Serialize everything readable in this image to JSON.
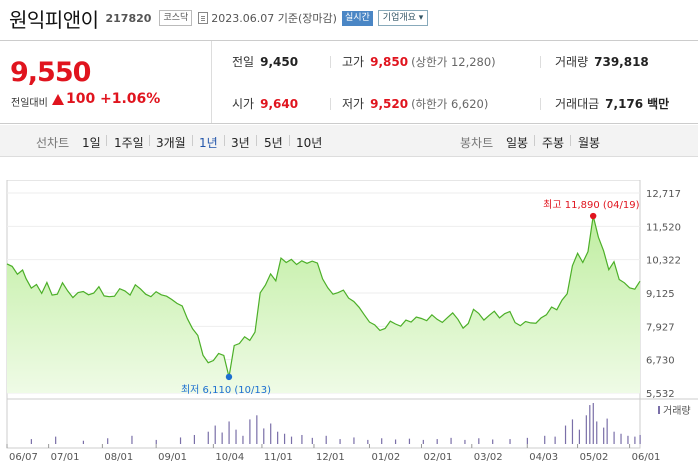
{
  "header": {
    "name": "원익피앤이",
    "code": "217820",
    "market": "코스닥",
    "date_text": "2023.06.07 기준(장마감)",
    "live": "실시간",
    "company_info": "기업개요"
  },
  "price": {
    "current": "9,550",
    "change_label": "전일대비",
    "change": "100",
    "change_pct": "+1.06%",
    "direction": "up"
  },
  "stats": {
    "prev_close_label": "전일",
    "prev_close": "9,450",
    "high_label": "고가",
    "high": "9,850",
    "upper_limit": "(상한가 12,280)",
    "volume_label": "거래량",
    "volume": "739,818",
    "open_label": "시가",
    "open": "9,640",
    "low_label": "저가",
    "low": "9,520",
    "lower_limit": "(하한가 6,620)",
    "amount_label": "거래대금",
    "amount": "7,176",
    "amount_unit": "백만"
  },
  "period_bar": {
    "line_label": "선차트",
    "line_periods": [
      "1일",
      "1주일",
      "3개월",
      "1년",
      "3년",
      "5년",
      "10년"
    ],
    "active_period": "1년",
    "candle_label": "봉차트",
    "candle_periods": [
      "일봉",
      "주봉",
      "월봉"
    ]
  },
  "colors": {
    "up": "#e0141e",
    "line": "#4caf28",
    "fill": "#d8f5c0",
    "high_marker": "#e0141e",
    "low_marker": "#1c6fd0",
    "active": "#2255aa"
  },
  "chart_data": {
    "type": "area",
    "y_ticks": [
      "12,717",
      "11,520",
      "10,322",
      "9,125",
      "7,927",
      "6,730",
      "5,532"
    ],
    "ylim": [
      5532,
      12717
    ],
    "x_ticks": [
      "06/07",
      "07/01",
      "08/01",
      "09/01",
      "10/04",
      "11/01",
      "12/01",
      "01/02",
      "02/01",
      "03/02",
      "04/03",
      "05/02",
      "06/01"
    ],
    "x_range": [
      "2022-06-07",
      "2023-06-07"
    ],
    "high_annotation": "최고 11,890 (04/19)",
    "high": {
      "date": "2023-04-19",
      "value": 11890
    },
    "low_annotation": "최저 6,110 (10/13)",
    "low": {
      "date": "2022-10-13",
      "value": 6110
    },
    "volume_label": "거래량",
    "series": [
      {
        "values": [
          [
            0,
            10170
          ],
          [
            3,
            10080
          ],
          [
            6,
            9800
          ],
          [
            9,
            9950
          ],
          [
            11,
            9640
          ],
          [
            14,
            9300
          ],
          [
            17,
            9430
          ],
          [
            20,
            9110
          ],
          [
            23,
            9500
          ],
          [
            26,
            9050
          ],
          [
            29,
            9080
          ],
          [
            32,
            9490
          ],
          [
            35,
            9200
          ],
          [
            38,
            8960
          ],
          [
            41,
            9140
          ],
          [
            44,
            9180
          ],
          [
            47,
            9060
          ],
          [
            50,
            9120
          ],
          [
            53,
            9350
          ],
          [
            56,
            9020
          ],
          [
            59,
            8990
          ],
          [
            62,
            9010
          ],
          [
            65,
            9280
          ],
          [
            68,
            9200
          ],
          [
            71,
            9050
          ],
          [
            74,
            9420
          ],
          [
            77,
            9270
          ],
          [
            80,
            9080
          ],
          [
            83,
            8990
          ],
          [
            86,
            9170
          ],
          [
            89,
            9060
          ],
          [
            92,
            9010
          ],
          [
            95,
            8890
          ],
          [
            98,
            8750
          ],
          [
            101,
            8660
          ],
          [
            104,
            8200
          ],
          [
            107,
            7840
          ],
          [
            110,
            7600
          ],
          [
            113,
            6890
          ],
          [
            116,
            6620
          ],
          [
            119,
            6700
          ],
          [
            122,
            6950
          ],
          [
            125,
            6880
          ],
          [
            128,
            6110
          ],
          [
            131,
            7240
          ],
          [
            134,
            7310
          ],
          [
            137,
            7550
          ],
          [
            140,
            7420
          ],
          [
            143,
            7720
          ],
          [
            146,
            9130
          ],
          [
            149,
            9410
          ],
          [
            152,
            9810
          ],
          [
            155,
            9560
          ],
          [
            158,
            10380
          ],
          [
            161,
            10220
          ],
          [
            164,
            10330
          ],
          [
            167,
            10150
          ],
          [
            170,
            10280
          ],
          [
            173,
            10190
          ],
          [
            176,
            10270
          ],
          [
            179,
            10200
          ],
          [
            182,
            9630
          ],
          [
            185,
            9310
          ],
          [
            188,
            9080
          ],
          [
            191,
            9140
          ],
          [
            194,
            9230
          ],
          [
            197,
            8940
          ],
          [
            200,
            8820
          ],
          [
            203,
            8610
          ],
          [
            206,
            8340
          ],
          [
            209,
            8080
          ],
          [
            212,
            7980
          ],
          [
            215,
            7780
          ],
          [
            218,
            7850
          ],
          [
            221,
            8110
          ],
          [
            224,
            8010
          ],
          [
            227,
            7930
          ],
          [
            230,
            8150
          ],
          [
            233,
            8080
          ],
          [
            236,
            8260
          ],
          [
            239,
            8210
          ],
          [
            242,
            8130
          ],
          [
            245,
            8340
          ],
          [
            248,
            8180
          ],
          [
            251,
            8070
          ],
          [
            254,
            8240
          ],
          [
            257,
            8410
          ],
          [
            260,
            8180
          ],
          [
            263,
            7860
          ],
          [
            266,
            8030
          ],
          [
            269,
            8540
          ],
          [
            272,
            8390
          ],
          [
            275,
            8150
          ],
          [
            278,
            8320
          ],
          [
            281,
            8470
          ],
          [
            284,
            8230
          ],
          [
            287,
            8380
          ],
          [
            290,
            8460
          ],
          [
            293,
            8060
          ],
          [
            296,
            7950
          ],
          [
            299,
            8100
          ],
          [
            302,
            8050
          ],
          [
            305,
            8040
          ],
          [
            308,
            8230
          ],
          [
            311,
            8340
          ],
          [
            314,
            8620
          ],
          [
            317,
            8520
          ],
          [
            320,
            8870
          ],
          [
            323,
            9100
          ],
          [
            326,
            10100
          ],
          [
            329,
            10550
          ],
          [
            332,
            10220
          ],
          [
            335,
            10610
          ],
          [
            338,
            11890
          ],
          [
            341,
            11130
          ],
          [
            344,
            10640
          ],
          [
            347,
            9960
          ],
          [
            350,
            10250
          ],
          [
            353,
            9610
          ],
          [
            356,
            9490
          ],
          [
            359,
            9310
          ],
          [
            362,
            9260
          ],
          [
            365,
            9550
          ]
        ]
      }
    ],
    "volume": [
      [
        14,
        0.12
      ],
      [
        28,
        0.18
      ],
      [
        44,
        0.08
      ],
      [
        58,
        0.14
      ],
      [
        72,
        0.2
      ],
      [
        86,
        0.1
      ],
      [
        100,
        0.16
      ],
      [
        108,
        0.22
      ],
      [
        116,
        0.3
      ],
      [
        120,
        0.45
      ],
      [
        124,
        0.28
      ],
      [
        128,
        0.55
      ],
      [
        132,
        0.35
      ],
      [
        136,
        0.2
      ],
      [
        140,
        0.6
      ],
      [
        144,
        0.7
      ],
      [
        148,
        0.38
      ],
      [
        152,
        0.5
      ],
      [
        156,
        0.3
      ],
      [
        160,
        0.25
      ],
      [
        164,
        0.18
      ],
      [
        170,
        0.22
      ],
      [
        176,
        0.15
      ],
      [
        184,
        0.2
      ],
      [
        192,
        0.12
      ],
      [
        200,
        0.16
      ],
      [
        208,
        0.1
      ],
      [
        216,
        0.14
      ],
      [
        224,
        0.11
      ],
      [
        232,
        0.13
      ],
      [
        240,
        0.1
      ],
      [
        248,
        0.12
      ],
      [
        256,
        0.15
      ],
      [
        264,
        0.1
      ],
      [
        272,
        0.14
      ],
      [
        280,
        0.11
      ],
      [
        290,
        0.12
      ],
      [
        300,
        0.15
      ],
      [
        310,
        0.2
      ],
      [
        316,
        0.18
      ],
      [
        322,
        0.45
      ],
      [
        326,
        0.6
      ],
      [
        330,
        0.35
      ],
      [
        334,
        0.7
      ],
      [
        336,
        0.95
      ],
      [
        338,
        1.0
      ],
      [
        340,
        0.55
      ],
      [
        344,
        0.4
      ],
      [
        346,
        0.62
      ],
      [
        350,
        0.3
      ],
      [
        354,
        0.25
      ],
      [
        358,
        0.2
      ],
      [
        362,
        0.18
      ],
      [
        365,
        0.22
      ]
    ]
  }
}
